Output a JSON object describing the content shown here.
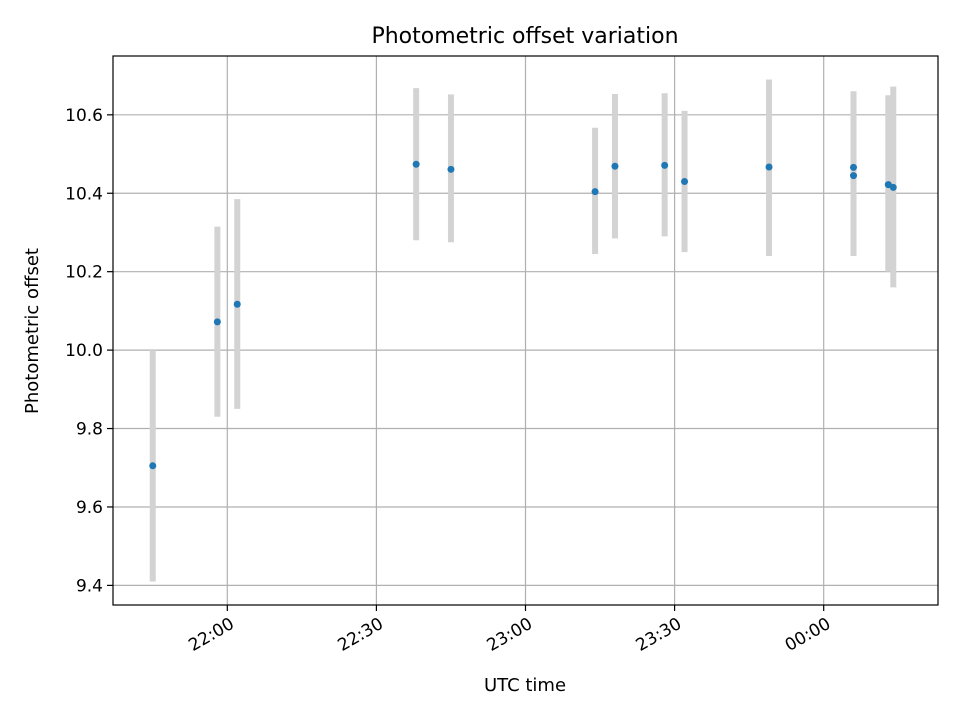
{
  "chart_data": {
    "type": "scatter",
    "title": "Photometric offset variation",
    "xlabel": "UTC time",
    "ylabel": "Photometric offset",
    "xlim": [
      "21:37",
      "00:23"
    ],
    "ylim": [
      9.35,
      10.75
    ],
    "x_ticks": [
      "22:00",
      "22:30",
      "23:00",
      "23:30",
      "00:00"
    ],
    "y_ticks": [
      "9.4",
      "9.6",
      "9.8",
      "10.0",
      "10.2",
      "10.4",
      "10.6"
    ],
    "grid": true,
    "error_bars": true,
    "colors": {
      "points": "#1f77b4",
      "error_bars": "#d3d3d3",
      "grid": "#b0b0b0"
    },
    "points": [
      {
        "x": "21:45",
        "y": 9.705,
        "yerr_low": 9.41,
        "yerr_high": 10.0
      },
      {
        "x": "21:58",
        "y": 10.072,
        "yerr_low": 9.83,
        "yerr_high": 10.315
      },
      {
        "x": "22:02",
        "y": 10.117,
        "yerr_low": 9.85,
        "yerr_high": 10.385
      },
      {
        "x": "22:38",
        "y": 10.474,
        "yerr_low": 10.28,
        "yerr_high": 10.668
      },
      {
        "x": "22:45",
        "y": 10.461,
        "yerr_low": 10.275,
        "yerr_high": 10.652
      },
      {
        "x": "23:14",
        "y": 10.404,
        "yerr_low": 10.245,
        "yerr_high": 10.567
      },
      {
        "x": "23:18",
        "y": 10.469,
        "yerr_low": 10.285,
        "yerr_high": 10.653
      },
      {
        "x": "23:28",
        "y": 10.471,
        "yerr_low": 10.29,
        "yerr_high": 10.655
      },
      {
        "x": "23:32",
        "y": 10.43,
        "yerr_low": 10.25,
        "yerr_high": 10.61
      },
      {
        "x": "23:49",
        "y": 10.467,
        "yerr_low": 10.24,
        "yerr_high": 10.69
      },
      {
        "x": "00:06",
        "y": 10.466,
        "yerr_low": 10.24,
        "yerr_high": 10.66
      },
      {
        "x": "00:06",
        "y": 10.445,
        "yerr_low": 10.24,
        "yerr_high": 10.65
      },
      {
        "x": "00:13",
        "y": 10.422,
        "yerr_low": 10.2,
        "yerr_high": 10.65
      },
      {
        "x": "00:14",
        "y": 10.415,
        "yerr_low": 10.16,
        "yerr_high": 10.672
      }
    ]
  }
}
